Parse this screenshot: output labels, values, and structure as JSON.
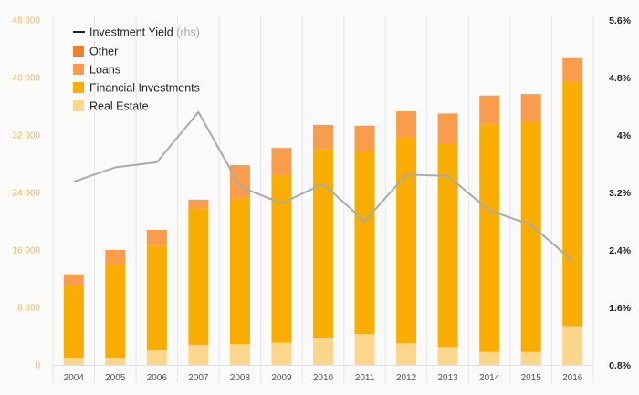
{
  "chart_data": {
    "type": "bar",
    "stacked": true,
    "categories": [
      "2004",
      "2005",
      "2006",
      "2007",
      "2008",
      "2009",
      "2010",
      "2011",
      "2012",
      "2013",
      "2014",
      "2015",
      "2016"
    ],
    "series": [
      {
        "name": "Real Estate",
        "color": "#fcd68a",
        "values": [
          1000,
          1000,
          2000,
          2800,
          2900,
          3100,
          3800,
          4300,
          3000,
          2500,
          1800,
          1800,
          5400
        ]
      },
      {
        "name": "Financial Investments",
        "color": "#f8ad00",
        "values": [
          10100,
          13100,
          14600,
          19000,
          20300,
          23300,
          26200,
          25500,
          28700,
          28300,
          31700,
          32100,
          34100
        ]
      },
      {
        "name": "Loans",
        "color": "#f99c4b",
        "values": [
          1500,
          1900,
          2200,
          1200,
          4600,
          3800,
          3400,
          3500,
          3600,
          4200,
          4000,
          3800,
          3200
        ]
      },
      {
        "name": "Other",
        "color": "#f07f2d",
        "values": [
          0,
          0,
          0,
          0,
          0,
          0,
          0,
          0,
          0,
          0,
          0,
          0,
          0
        ]
      }
    ],
    "line": {
      "name": "Investment Yield",
      "axis": "rhs",
      "color": "#aaaaaa",
      "values": [
        3.35,
        3.55,
        3.62,
        4.32,
        3.28,
        3.05,
        3.32,
        2.8,
        3.45,
        3.43,
        2.95,
        2.75,
        2.25
      ]
    },
    "ylim": [
      0,
      48000
    ],
    "yticks": [
      0,
      8000,
      16000,
      24000,
      32000,
      40000,
      48000
    ],
    "ytick_labels": [
      "0",
      "8 000",
      "16 000",
      "24 000",
      "32 000",
      "40 000",
      "48 000"
    ],
    "y2lim": [
      0.8,
      5.6
    ],
    "y2ticks": [
      0.8,
      1.6,
      2.4,
      3.2,
      4.0,
      4.8,
      5.6
    ],
    "y2tick_labels": [
      "0.8%",
      "1.6%",
      "2.4%",
      "3.2%",
      "4%",
      "4.8%",
      "5.6%"
    ],
    "legend": {
      "position": "top-left",
      "line_label": "Investment Yield",
      "line_suffix": "(rhs)",
      "items": [
        "Other",
        "Loans",
        "Financial Investments",
        "Real Estate"
      ]
    },
    "grid": "vertical"
  }
}
